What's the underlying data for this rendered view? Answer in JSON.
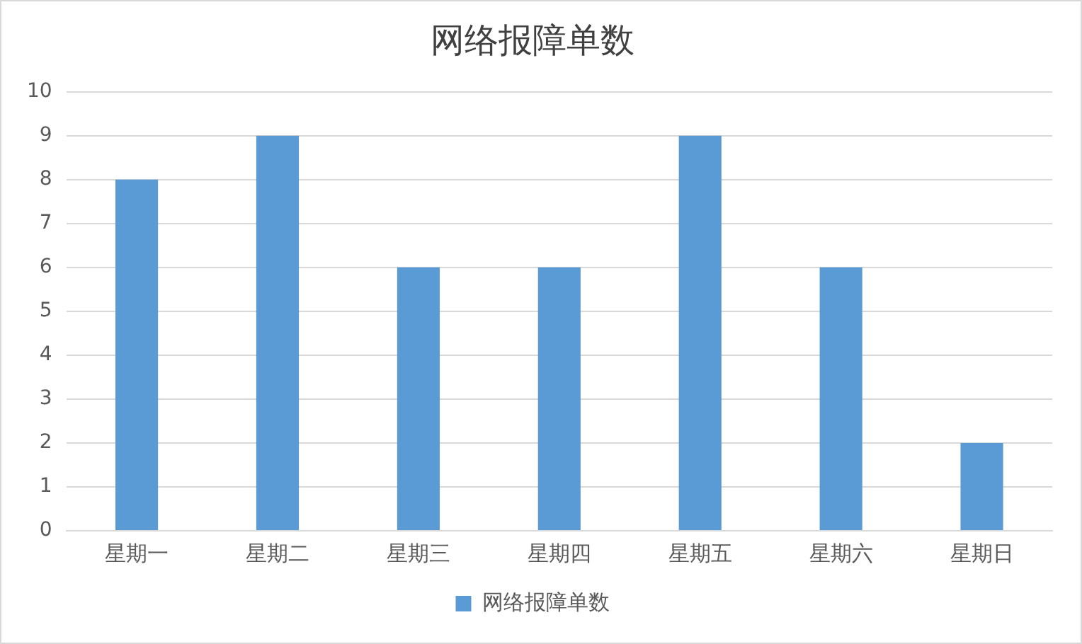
{
  "chart_data": {
    "type": "bar",
    "title": "网络报障单数",
    "categories": [
      "星期一",
      "星期二",
      "星期三",
      "星期四",
      "星期五",
      "星期六",
      "星期日"
    ],
    "series": [
      {
        "name": "网络报障单数",
        "color": "#5b9bd5",
        "values": [
          8,
          9,
          6,
          6,
          9,
          6,
          2
        ]
      }
    ],
    "ylim": [
      0,
      10
    ],
    "yticks": [
      0,
      1,
      2,
      3,
      4,
      5,
      6,
      7,
      8,
      9,
      10
    ],
    "grid": "y",
    "legend": "bottom"
  }
}
